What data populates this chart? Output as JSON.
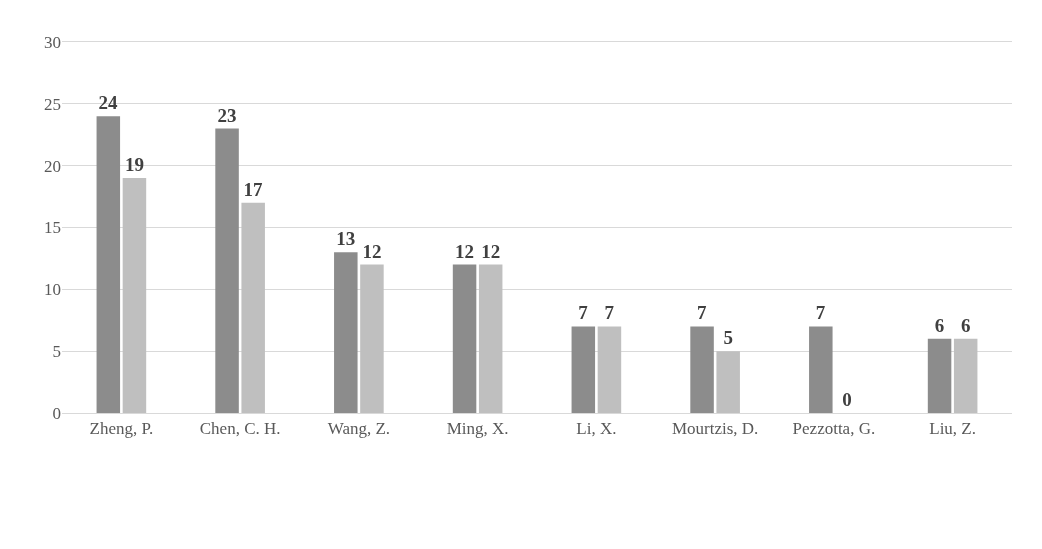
{
  "chart_data": {
    "type": "bar",
    "categories": [
      "Zheng, P.",
      "Chen, C. H.",
      "Wang, Z.",
      "Ming, X.",
      "Li, X.",
      "Mourtzis, D.",
      "Pezzotta, G.",
      "Liu, Z."
    ],
    "series": [
      {
        "color": "#8c8c8c",
        "values": [
          24,
          23,
          13,
          12,
          7,
          7,
          7,
          6
        ]
      },
      {
        "color": "#bfbfbf",
        "values": [
          19,
          17,
          12,
          12,
          7,
          5,
          0,
          6
        ]
      }
    ],
    "ylim": [
      0,
      30
    ],
    "yticks": [
      0,
      5,
      10,
      15,
      20,
      25,
      30
    ],
    "grid": "y",
    "data_labels": true
  }
}
